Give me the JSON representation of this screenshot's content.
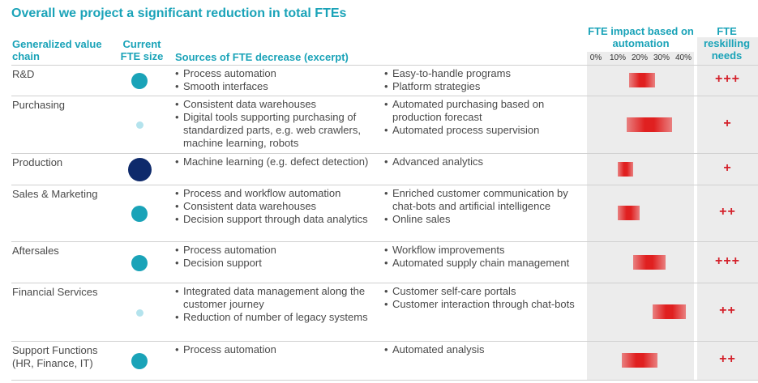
{
  "title": "Overall we project a significant reduction in total FTEs",
  "headers": {
    "chain": "Generalized value chain",
    "size": "Current FTE size",
    "sources": "Sources of FTE decrease (excerpt)",
    "impact": "FTE impact based on automation",
    "reskill": "FTE reskilling needs"
  },
  "axis_ticks": [
    "0%",
    "10%",
    "20%",
    "30%",
    "40%"
  ],
  "colors": {
    "teal": "#1aa3b8",
    "light_teal": "#b4e3ed",
    "navy": "#0e2a6b",
    "red": "#d4202a"
  },
  "rows": [
    {
      "name": "R&D",
      "size_level": "medium",
      "sources_a": [
        "Process automation",
        "Smooth interfaces"
      ],
      "sources_b": [
        "Easy-to-handle programs",
        "Platform strategies"
      ],
      "impact_range": [
        15,
        27
      ],
      "reskill": "+++"
    },
    {
      "name": "Purchasing",
      "size_level": "small",
      "sources_a": [
        "Consistent data warehouses",
        "Digital tools supporting purchasing of standardized parts, e.g. web crawlers, machine learning, robots"
      ],
      "sources_b": [
        "Automated purchasing based on production forecast",
        "Automated process supervision"
      ],
      "impact_range": [
        14,
        35
      ],
      "reskill": "+"
    },
    {
      "name": "Production",
      "size_level": "large",
      "sources_a": [
        "Machine learning (e.g. defect detection)"
      ],
      "sources_b": [
        "Advanced analytics"
      ],
      "impact_range": [
        10,
        17
      ],
      "reskill": "+"
    },
    {
      "name": "Sales & Marketing",
      "size_level": "medium",
      "sources_a": [
        "Process and workflow automation",
        "Consistent data warehouses",
        "Decision support through data analytics"
      ],
      "sources_b": [
        "Enriched customer communication by chat-bots and artificial intelligence",
        "Online sales"
      ],
      "impact_range": [
        10,
        20
      ],
      "reskill": "++"
    },
    {
      "name": "Aftersales",
      "size_level": "medium",
      "sources_a": [
        "Process automation",
        "Decision support"
      ],
      "sources_b": [
        "Workflow improvements",
        "Automated supply chain management"
      ],
      "impact_range": [
        17,
        32
      ],
      "reskill": "+++"
    },
    {
      "name": "Financial Services",
      "size_level": "small",
      "sources_a": [
        "Integrated data management along the customer journey",
        "Reduction of number of legacy systems"
      ],
      "sources_b": [
        "Customer self-care portals",
        "Customer interaction through chat-bots"
      ],
      "impact_range": [
        26,
        41
      ],
      "reskill": "++"
    },
    {
      "name": "Support Functions (HR, Finance, IT)",
      "size_level": "medium",
      "sources_a": [
        "Process automation"
      ],
      "sources_b": [
        "Automated analysis"
      ],
      "impact_range": [
        12,
        28
      ],
      "reskill": "++"
    }
  ]
}
